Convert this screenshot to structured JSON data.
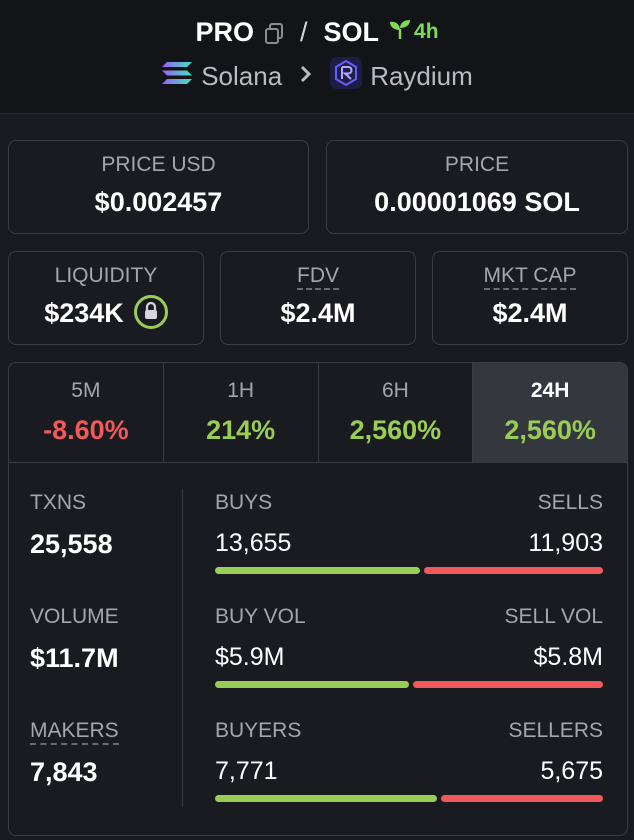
{
  "header": {
    "base_token": "PRO",
    "separator": "/",
    "quote_token": "SOL",
    "age": "4h",
    "chain": "Solana",
    "dex": "Raydium",
    "icons": [
      "copy-icon",
      "sprout-icon",
      "solana-icon",
      "chevron-right-icon",
      "raydium-icon"
    ]
  },
  "prices": {
    "price_usd_label": "PRICE USD",
    "price_usd": "$0.002457",
    "price_label": "PRICE",
    "price_native": "0.00001069 SOL"
  },
  "metrics": {
    "liquidity_label": "LIQUIDITY",
    "liquidity": "$234K",
    "fdv_label": "FDV",
    "fdv": "$2.4M",
    "mktcap_label": "MKT CAP",
    "mktcap": "$2.4M"
  },
  "timeframes": [
    {
      "label": "5M",
      "change": "-8.60%",
      "sign": "neg"
    },
    {
      "label": "1H",
      "change": "214%",
      "sign": "pos"
    },
    {
      "label": "6H",
      "change": "2,560%",
      "sign": "pos"
    },
    {
      "label": "24H",
      "change": "2,560%",
      "sign": "pos",
      "active": true
    }
  ],
  "stats": {
    "txns_label": "TXNS",
    "txns": "25,558",
    "volume_label": "VOLUME",
    "volume": "$11.7M",
    "makers_label": "MAKERS",
    "makers": "7,843"
  },
  "ratios": {
    "buys_label": "BUYS",
    "buys": "13,655",
    "sells_label": "SELLS",
    "sells": "11,903",
    "buys_fraction": 0.534,
    "buy_vol_label": "BUY VOL",
    "buy_vol": "$5.9M",
    "sell_vol_label": "SELL VOL",
    "sell_vol": "$5.8M",
    "vol_fraction": 0.504,
    "buyers_label": "BUYERS",
    "buyers": "7,771",
    "sellers_label": "SELLERS",
    "sellers": "5,675",
    "buyers_fraction": 0.578
  },
  "colors": {
    "positive": "#9acd55",
    "negative": "#f05a5a",
    "age": "#7ed957"
  }
}
